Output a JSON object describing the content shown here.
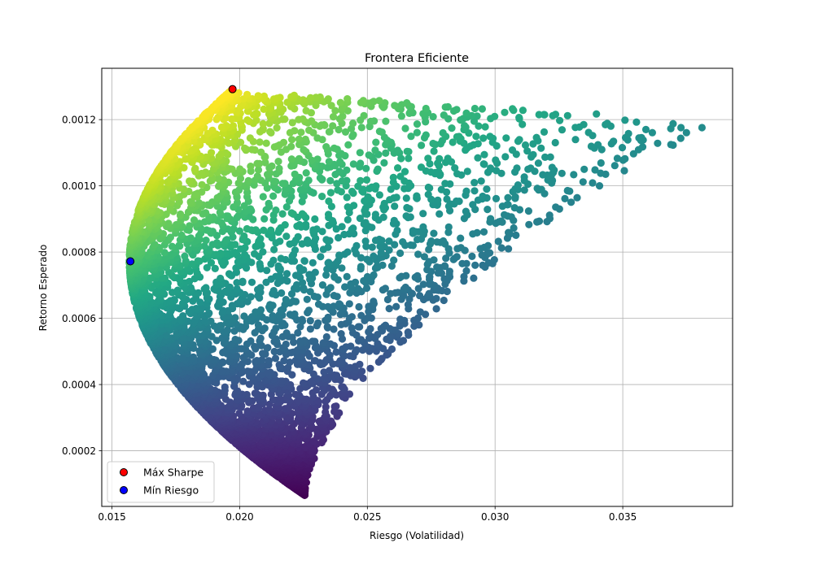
{
  "chart_data": {
    "type": "scatter",
    "title": "Frontera Eficiente",
    "xlabel": "Riesgo (Volatilidad)",
    "ylabel": "Retorno Esperado",
    "xlim": [
      0.0146,
      0.0393
    ],
    "ylim": [
      3.2e-05,
      0.001355
    ],
    "xticks": [
      0.015,
      0.02,
      0.025,
      0.03,
      0.035
    ],
    "xtick_labels": [
      "0.015",
      "0.020",
      "0.025",
      "0.030",
      "0.035"
    ],
    "yticks": [
      0.0002,
      0.0004,
      0.0006,
      0.0008,
      0.001,
      0.0012
    ],
    "ytick_labels": [
      "0.0002",
      "0.0004",
      "0.0006",
      "0.0008",
      "0.0010",
      "0.0012"
    ],
    "grid": true,
    "colormap": "viridis",
    "color_encodes": "Sharpe ratio",
    "frontier": {
      "min_variance": {
        "x": 0.01568,
        "y": 0.000772
      },
      "upper_tip": {
        "x": 0.0197,
        "y": 0.00129
      },
      "lower_tip": {
        "x": 0.02255,
        "y": 6.6e-05
      },
      "right_edge": {
        "x": 0.0386,
        "y": 0.001195
      }
    },
    "series": [
      {
        "name": "Máx Sharpe",
        "x": [
          0.01972
        ],
        "y": [
          0.001292
        ],
        "color": "#ff0000"
      },
      {
        "name": "Mín Riesgo",
        "x": [
          0.01572
        ],
        "y": [
          0.000772
        ],
        "color": "#0000ff"
      }
    ],
    "legend_position": "lower-left"
  }
}
